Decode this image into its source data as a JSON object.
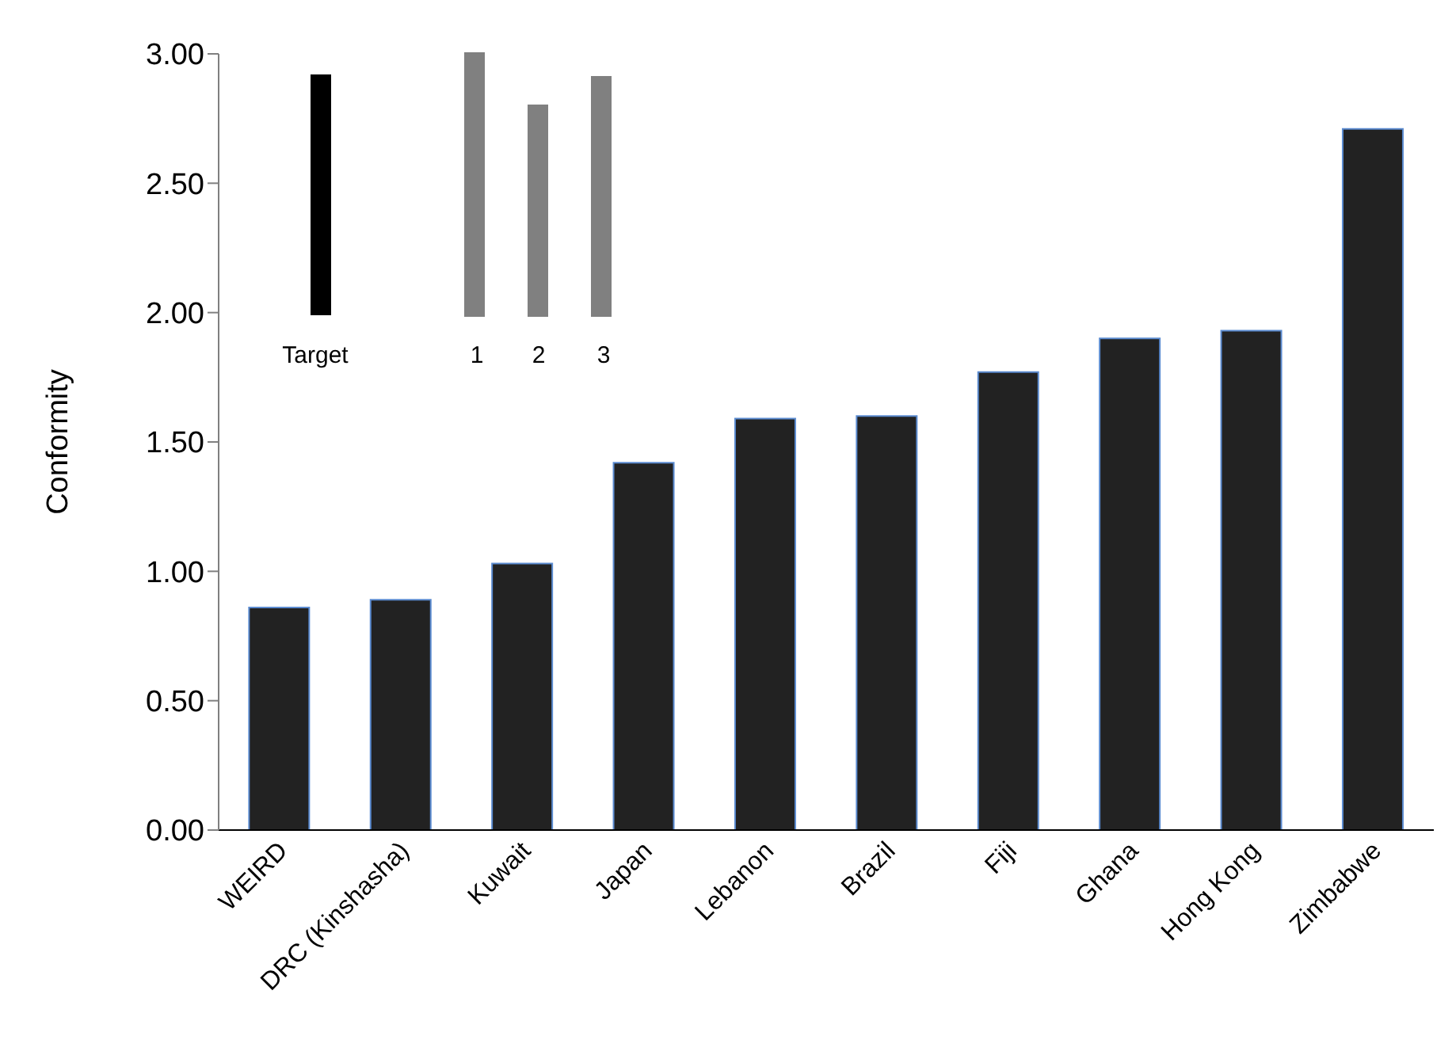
{
  "chart_data": {
    "type": "bar",
    "ylabel": "Conformity",
    "categories": [
      "WEIRD",
      "DRC (Kinshasha)",
      "Kuwait",
      "Japan",
      "Lebanon",
      "Brazil",
      "Fiji",
      "Ghana",
      "Hong Kong",
      "Zimbabwe"
    ],
    "values": [
      0.86,
      0.89,
      1.03,
      1.42,
      1.59,
      1.6,
      1.77,
      1.9,
      1.93,
      2.71
    ],
    "color": "#222222",
    "ylim": [
      0,
      3
    ],
    "yticks": [
      {
        "value": 0,
        "label": "0.00"
      },
      {
        "value": 0.5,
        "label": "0.50"
      },
      {
        "value": 1,
        "label": "1.00"
      },
      {
        "value": 1.5,
        "label": "1.50"
      },
      {
        "value": 2,
        "label": "2.00"
      },
      {
        "value": 2.5,
        "label": "2.50"
      },
      {
        "value": 3,
        "label": "3.00"
      }
    ],
    "grid": false,
    "legend": false,
    "annotations": [
      "Target",
      "1",
      "2",
      "3"
    ]
  }
}
